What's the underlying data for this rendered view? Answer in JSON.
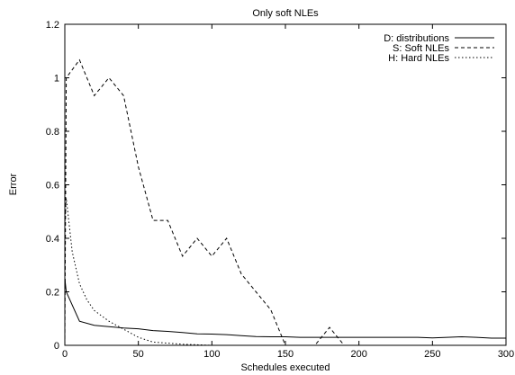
{
  "chart_data": {
    "type": "line",
    "title": "Only soft NLEs",
    "xlabel": "Schedules executed",
    "ylabel": "Error",
    "xlim": [
      0,
      300
    ],
    "ylim": [
      0,
      1.2
    ],
    "x_ticks": [
      0,
      50,
      100,
      150,
      200,
      250,
      300
    ],
    "y_ticks": [
      0,
      0.2,
      0.4,
      0.6,
      0.8,
      1,
      1.2
    ],
    "x_tick_labels": [
      "0",
      "50",
      "100",
      "150",
      "200",
      "250",
      "300"
    ],
    "y_tick_labels": [
      "0",
      "0.2",
      "0.4",
      "0.6",
      "0.8",
      "1",
      "1.2"
    ],
    "grid": false,
    "legend_position": "top-right",
    "series": [
      {
        "name": "D: distributions",
        "dash": "solid",
        "x": [
          0,
          1,
          10,
          20,
          30,
          40,
          50,
          60,
          70,
          80,
          90,
          100,
          110,
          120,
          130,
          140,
          150,
          160,
          170,
          180,
          190,
          200,
          210,
          220,
          230,
          240,
          250,
          260,
          270,
          280,
          290,
          300
        ],
        "y": [
          0.25,
          0.2,
          0.09,
          0.075,
          0.07,
          0.065,
          0.062,
          0.055,
          0.052,
          0.048,
          0.043,
          0.042,
          0.04,
          0.036,
          0.033,
          0.032,
          0.032,
          0.03,
          0.03,
          0.03,
          0.03,
          0.03,
          0.03,
          0.03,
          0.03,
          0.03,
          0.028,
          0.03,
          0.032,
          0.03,
          0.027,
          0.027
        ]
      },
      {
        "name": "S: Soft NLEs",
        "dash": "dashed",
        "x": [
          0,
          1,
          10,
          20,
          30,
          40,
          50,
          60,
          70,
          80,
          90,
          100,
          110,
          120,
          130,
          140,
          150,
          160,
          170,
          180,
          190,
          200,
          250,
          300
        ],
        "y": [
          0,
          1.0,
          1.067,
          0.933,
          1.0,
          0.933,
          0.667,
          0.467,
          0.467,
          0.333,
          0.4,
          0.333,
          0.4,
          0.267,
          0.2,
          0.133,
          0.0,
          0.0,
          0.0,
          0.067,
          0.0,
          0.0,
          0.0,
          0.0
        ]
      },
      {
        "name": "H: Hard NLEs",
        "dash": "dotted",
        "x": [
          0,
          1,
          5,
          10,
          15,
          20,
          30,
          40,
          50,
          60,
          70,
          80,
          90,
          100,
          150,
          200,
          250,
          300
        ],
        "y": [
          0.45,
          0.55,
          0.35,
          0.23,
          0.17,
          0.13,
          0.09,
          0.06,
          0.03,
          0.012,
          0.008,
          0.004,
          0.002,
          0.0,
          0.0,
          0.0,
          0.0,
          0.0
        ]
      }
    ]
  }
}
